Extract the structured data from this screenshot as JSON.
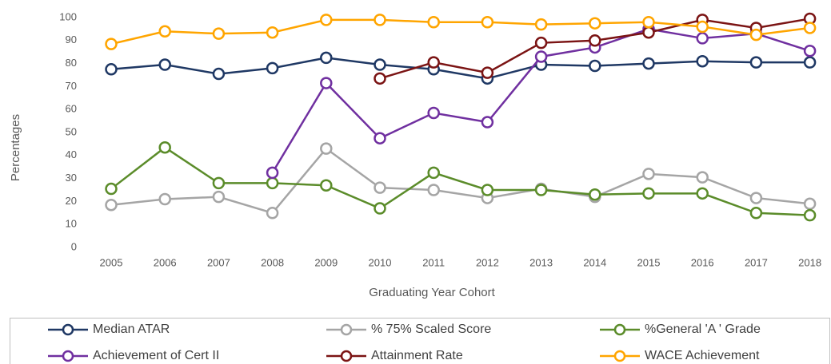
{
  "chart_data": {
    "type": "line",
    "x_label": "Graduating Year Cohort",
    "y_label": "Percentages",
    "categories": [
      "2005",
      "2006",
      "2007",
      "2008",
      "2009",
      "2010",
      "2011",
      "2012",
      "2013",
      "2014",
      "2015",
      "2016",
      "2017",
      "2018"
    ],
    "ylim": [
      0,
      100
    ],
    "yticks": [
      0,
      10,
      20,
      30,
      40,
      50,
      60,
      70,
      80,
      90,
      100
    ],
    "grid": false,
    "legend": "bottom",
    "series": [
      {
        "name": "Median ATAR",
        "color": "#1f3864",
        "values": [
          77.5,
          79.5,
          75.5,
          78,
          82.5,
          79.5,
          77.5,
          73.5,
          79.5,
          79,
          80,
          81,
          80.5,
          80.5
        ]
      },
      {
        "name": "% 75% Scaled Score",
        "color": "#a5a5a5",
        "values": [
          18.5,
          21,
          22,
          15,
          43,
          26,
          25,
          21.5,
          25.5,
          22,
          32,
          30.5,
          21.5,
          19
        ]
      },
      {
        "name": "%General 'A ' Grade",
        "color": "#5b8c2a",
        "values": [
          25.5,
          43.5,
          28,
          28,
          27,
          17,
          32.5,
          25,
          25,
          23,
          23.5,
          23.5,
          15,
          14
        ]
      },
      {
        "name": "Achievement of Cert II",
        "color": "#7030a0",
        "values": [
          null,
          null,
          null,
          32.5,
          71.5,
          47.5,
          58.5,
          54.5,
          83,
          87,
          95,
          91,
          93,
          85.5
        ]
      },
      {
        "name": "Attainment Rate",
        "color": "#7b1414",
        "values": [
          null,
          null,
          null,
          null,
          null,
          73.5,
          80.5,
          76,
          89,
          90,
          93.5,
          99,
          95.5,
          99.5
        ]
      },
      {
        "name": "WACE Achievement",
        "color": "#ffa500",
        "values": [
          88.5,
          94,
          93,
          93.5,
          99,
          99,
          98,
          98,
          97,
          97.5,
          98,
          96,
          92.5,
          95.5
        ]
      }
    ]
  }
}
